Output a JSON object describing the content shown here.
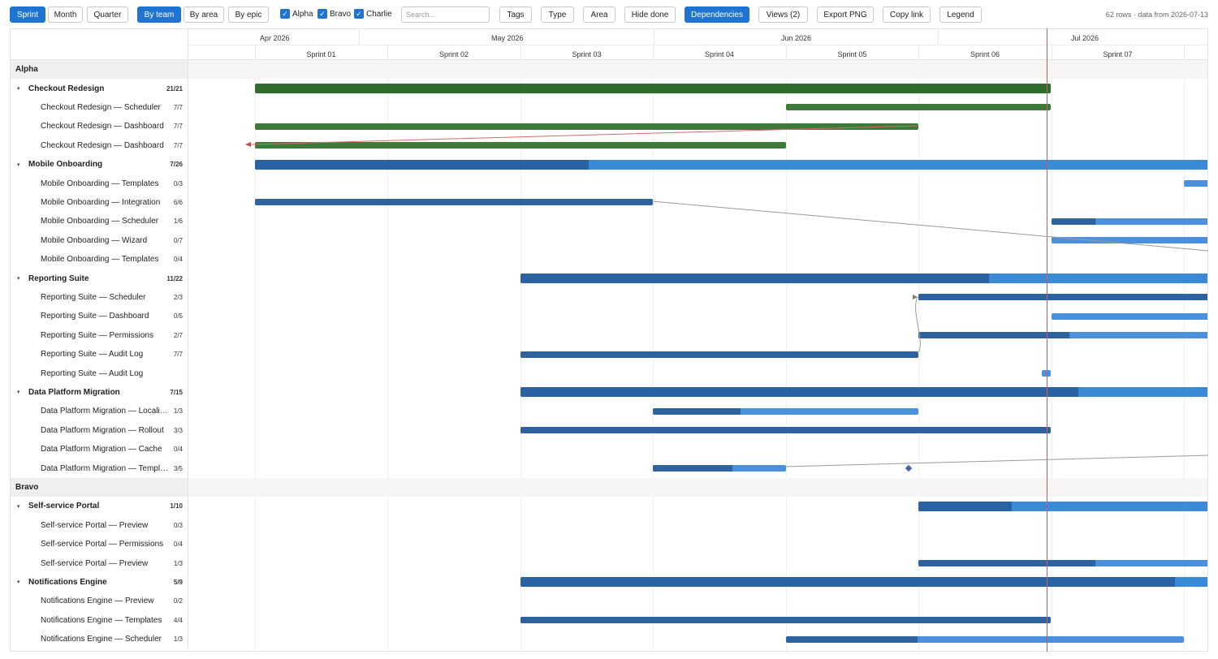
{
  "toolbar": {
    "grouping_buttons": [
      "Sprint",
      "Month",
      "Quarter"
    ],
    "view_buttons": [
      "By team",
      "By area",
      "By epic"
    ],
    "team_filters": [
      "Alpha",
      "Bravo",
      "Charlie"
    ],
    "search_placeholder": "Search…",
    "filter_buttons": [
      "Tags",
      "Type",
      "Area",
      "Hide done"
    ],
    "dependencies_label": "Dependencies",
    "views_label": "Views (2)",
    "export_label": "Export PNG",
    "copy_link_label": "Copy link",
    "legend_label": "Legend",
    "status": "62 rows · data from 2026-07-13"
  },
  "timeline": {
    "months": [
      "Apr 2026",
      "May 2026",
      "Jun 2026",
      "Jul 2026"
    ],
    "sprints": [
      "Sprint 01",
      "Sprint 02",
      "Sprint 03",
      "Sprint 04",
      "Sprint 05",
      "Sprint 06",
      "Sprint 07"
    ]
  },
  "colors": {
    "active_button": "#1f74d1",
    "done_bar": "#3d7a3a",
    "progress_dark": "#2f63a0",
    "progress_light": "#4a90dc",
    "today_line": "#d05b5b"
  },
  "rows": [
    {
      "kind": "team",
      "label": "Alpha"
    },
    {
      "kind": "epic",
      "label": "Checkout Redesign",
      "count": "21/21"
    },
    {
      "kind": "task",
      "label": "Checkout Redesign — Scheduler",
      "count": "7/7"
    },
    {
      "kind": "task",
      "label": "Checkout Redesign — Dashboard",
      "count": "7/7"
    },
    {
      "kind": "task",
      "label": "Checkout Redesign — Dashboard",
      "count": "7/7"
    },
    {
      "kind": "epic",
      "label": "Mobile Onboarding",
      "count": "7/26"
    },
    {
      "kind": "task",
      "label": "Mobile Onboarding — Templates",
      "count": "0/3"
    },
    {
      "kind": "task",
      "label": "Mobile Onboarding — Integration",
      "count": "6/6"
    },
    {
      "kind": "task",
      "label": "Mobile Onboarding — Scheduler",
      "count": "1/6"
    },
    {
      "kind": "task",
      "label": "Mobile Onboarding — Wizard",
      "count": "0/7"
    },
    {
      "kind": "task",
      "label": "Mobile Onboarding — Templates",
      "count": "0/4"
    },
    {
      "kind": "epic",
      "label": "Reporting Suite",
      "count": "11/22"
    },
    {
      "kind": "task",
      "label": "Reporting Suite — Scheduler",
      "count": "2/3"
    },
    {
      "kind": "task",
      "label": "Reporting Suite — Dashboard",
      "count": "0/5"
    },
    {
      "kind": "task",
      "label": "Reporting Suite — Permissions",
      "count": "2/7"
    },
    {
      "kind": "task",
      "label": "Reporting Suite — Audit Log",
      "count": "7/7"
    },
    {
      "kind": "task",
      "label": "Reporting Suite — Audit Log",
      "count": ""
    },
    {
      "kind": "epic",
      "label": "Data Platform Migration",
      "count": "7/15"
    },
    {
      "kind": "task",
      "label": "Data Platform Migration — Localiz…",
      "count": "1/3"
    },
    {
      "kind": "task",
      "label": "Data Platform Migration — Rollout",
      "count": "3/3"
    },
    {
      "kind": "task",
      "label": "Data Platform Migration — Cache",
      "count": "0/4"
    },
    {
      "kind": "task",
      "label": "Data Platform Migration — Templa…",
      "count": "3/5"
    },
    {
      "kind": "team",
      "label": "Bravo"
    },
    {
      "kind": "epic",
      "label": "Self-service Portal",
      "count": "1/10"
    },
    {
      "kind": "task",
      "label": "Self-service Portal — Preview",
      "count": "0/3"
    },
    {
      "kind": "task",
      "label": "Self-service Portal — Permissions",
      "count": "0/4"
    },
    {
      "kind": "task",
      "label": "Self-service Portal — Preview",
      "count": "1/3"
    },
    {
      "kind": "epic",
      "label": "Notifications Engine",
      "count": "5/9"
    },
    {
      "kind": "task",
      "label": "Notifications Engine — Preview",
      "count": "0/2"
    },
    {
      "kind": "task",
      "label": "Notifications Engine — Templates",
      "count": "4/4"
    },
    {
      "kind": "task",
      "label": "Notifications Engine — Scheduler",
      "count": "1/3"
    }
  ]
}
